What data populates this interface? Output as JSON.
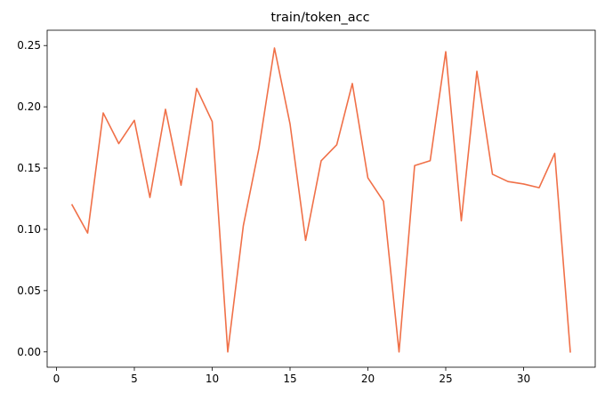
{
  "chart_data": {
    "type": "line",
    "title": "train/token_acc",
    "xlabel": "",
    "ylabel": "",
    "xlim": [
      -0.6,
      34.6
    ],
    "ylim": [
      -0.0125,
      0.2625
    ],
    "x_ticks": [
      0,
      5,
      10,
      15,
      20,
      25,
      30
    ],
    "y_ticks": [
      0.0,
      0.05,
      0.1,
      0.15,
      0.2,
      0.25
    ],
    "y_tick_labels": [
      "0.00",
      "0.05",
      "0.10",
      "0.15",
      "0.20",
      "0.25"
    ],
    "grid": false,
    "series": [
      {
        "color": "#f07048",
        "x": [
          1,
          2,
          3,
          4,
          5,
          6,
          7,
          8,
          9,
          10,
          11,
          12,
          13,
          14,
          15,
          16,
          17,
          18,
          19,
          20,
          21,
          22,
          23,
          24,
          25,
          26,
          27,
          28,
          29,
          30,
          31,
          32,
          33
        ],
        "values": [
          0.12,
          0.097,
          0.195,
          0.17,
          0.189,
          0.126,
          0.198,
          0.136,
          0.215,
          0.188,
          0.0,
          0.103,
          0.166,
          0.248,
          0.186,
          0.091,
          0.156,
          0.169,
          0.219,
          0.142,
          0.123,
          0.0,
          0.152,
          0.156,
          0.245,
          0.107,
          0.229,
          0.145,
          0.139,
          0.137,
          0.134,
          0.162,
          0.0
        ]
      }
    ]
  }
}
